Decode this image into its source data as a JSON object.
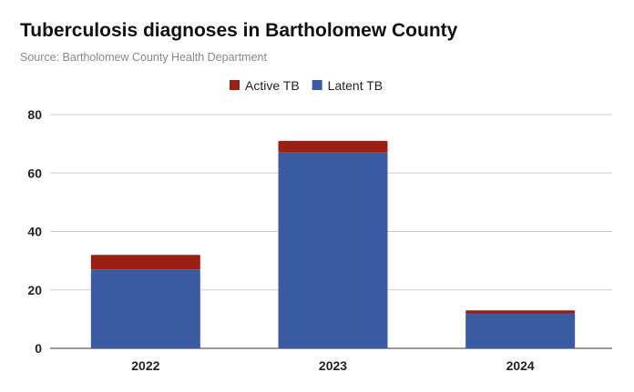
{
  "chart_data": {
    "type": "bar",
    "stacked": true,
    "title": "Tuberculosis diagnoses in Bartholomew County",
    "subtitle": "Source: Bartholomew County Health Department",
    "categories": [
      "2022",
      "2023",
      "2024"
    ],
    "series": [
      {
        "name": "Latent TB",
        "values": [
          27,
          67,
          12
        ],
        "color": "#3a5ba0"
      },
      {
        "name": "Active TB",
        "values": [
          5,
          4,
          1
        ],
        "color": "#9c1f14"
      }
    ],
    "legend_order": [
      "Active TB",
      "Latent TB"
    ],
    "legend_position": "top",
    "ylim": [
      0,
      80
    ],
    "yticks": [
      0,
      20,
      40,
      60,
      80
    ],
    "grid": true
  }
}
